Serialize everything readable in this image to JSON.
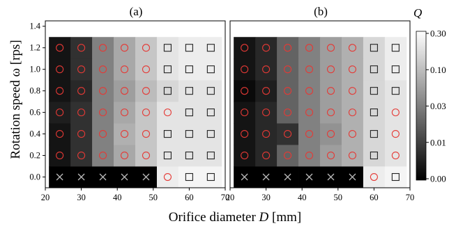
{
  "chart_data": [
    {
      "type": "heatmap",
      "title": "(a)",
      "x": [
        24,
        30,
        36,
        42,
        48,
        54,
        60,
        66
      ],
      "y": [
        0.0,
        0.2,
        0.4,
        0.6,
        0.8,
        1.0,
        1.2
      ],
      "xlim": [
        20,
        70
      ],
      "ylim": [
        -0.1,
        1.45
      ],
      "xticks": [
        "20",
        "30",
        "40",
        "50",
        "60",
        "70"
      ],
      "yticks": [
        "0.0",
        "0.2",
        "0.4",
        "0.6",
        "0.8",
        "1.0",
        "1.2",
        "1.4"
      ],
      "values": [
        [
          0.0,
          0.0,
          0.0,
          0.0,
          0.0,
          0.25,
          0.3,
          0.3
        ],
        [
          0.002,
          0.005,
          0.02,
          0.05,
          0.1,
          0.2,
          0.2,
          0.2
        ],
        [
          0.002,
          0.005,
          0.02,
          0.06,
          0.1,
          0.2,
          0.2,
          0.2
        ],
        [
          0.003,
          0.005,
          0.02,
          0.05,
          0.1,
          0.2,
          0.2,
          0.2
        ],
        [
          0.002,
          0.004,
          0.02,
          0.04,
          0.08,
          0.15,
          0.2,
          0.2
        ],
        [
          0.002,
          0.005,
          0.02,
          0.05,
          0.1,
          0.2,
          0.25,
          0.25
        ],
        [
          0.002,
          0.005,
          0.02,
          0.05,
          0.1,
          0.2,
          0.25,
          0.25
        ]
      ],
      "markers": [
        [
          "x",
          "x",
          "x",
          "x",
          "x",
          "o",
          "s",
          "s"
        ],
        [
          "o",
          "o",
          "o",
          "o",
          "o",
          "s",
          "s",
          "s"
        ],
        [
          "o",
          "o",
          "o",
          "o",
          "o",
          "s",
          "s",
          "s"
        ],
        [
          "o",
          "o",
          "o",
          "o",
          "o",
          "o",
          "s",
          "s"
        ],
        [
          "o",
          "o",
          "o",
          "o",
          "o",
          "s",
          "s",
          "s"
        ],
        [
          "o",
          "o",
          "o",
          "o",
          "o",
          "s",
          "s",
          "s"
        ],
        [
          "o",
          "o",
          "o",
          "o",
          "o",
          "s",
          "s",
          "s"
        ]
      ],
      "ylabel": "Rotation speed ω [rps]"
    },
    {
      "type": "heatmap",
      "title": "(b)",
      "x": [
        24,
        30,
        36,
        42,
        48,
        54,
        60,
        66
      ],
      "y": [
        0.0,
        0.2,
        0.4,
        0.6,
        0.8,
        1.0,
        1.2
      ],
      "xlim": [
        20,
        70
      ],
      "ylim": [
        -0.1,
        1.45
      ],
      "xticks": [
        "20",
        "30",
        "40",
        "50",
        "60",
        "70"
      ],
      "yticks": [
        "0.0",
        "0.2",
        "0.4",
        "0.6",
        "0.8",
        "1.0",
        "1.2",
        "1.4"
      ],
      "values": [
        [
          0.0,
          0.0,
          0.0,
          0.0,
          0.0,
          0.0,
          0.25,
          0.3
        ],
        [
          0.002,
          0.004,
          0.01,
          0.02,
          0.04,
          0.06,
          0.15,
          0.2
        ],
        [
          0.002,
          0.004,
          0.005,
          0.02,
          0.03,
          0.06,
          0.15,
          0.2
        ],
        [
          0.002,
          0.004,
          0.01,
          0.02,
          0.04,
          0.06,
          0.15,
          0.2
        ],
        [
          0.001,
          0.003,
          0.01,
          0.02,
          0.04,
          0.06,
          0.15,
          0.2
        ],
        [
          0.002,
          0.004,
          0.01,
          0.02,
          0.04,
          0.06,
          0.15,
          0.25
        ],
        [
          0.002,
          0.004,
          0.01,
          0.02,
          0.04,
          0.06,
          0.15,
          0.25
        ]
      ],
      "markers": [
        [
          "x",
          "x",
          "x",
          "x",
          "x",
          "x",
          "o",
          "s"
        ],
        [
          "o",
          "o",
          "o",
          "o",
          "o",
          "o",
          "s",
          "o"
        ],
        [
          "o",
          "o",
          "o",
          "o",
          "o",
          "o",
          "s",
          "o"
        ],
        [
          "o",
          "o",
          "o",
          "o",
          "o",
          "o",
          "s",
          "o"
        ],
        [
          "o",
          "o",
          "o",
          "o",
          "o",
          "o",
          "s",
          "s"
        ],
        [
          "o",
          "o",
          "o",
          "o",
          "o",
          "o",
          "s",
          "s"
        ],
        [
          "o",
          "o",
          "o",
          "o",
          "o",
          "o",
          "s",
          "s"
        ]
      ]
    }
  ],
  "shared": {
    "xlabel_prefix": "Orifice diameter ",
    "xlabel_var": "D",
    "xlabel_suffix": " [mm]"
  },
  "colorbar": {
    "title": "Q",
    "ticks": [
      0.3,
      0.1,
      0.03,
      0.01,
      0.0
    ],
    "tick_labels": [
      "0.30",
      "0.10",
      "0.03",
      "0.01",
      "0.00"
    ],
    "scale": "symlog",
    "colormap": "gray"
  },
  "colors": {
    "circle_marker": "#e53935",
    "square_marker": "#222222",
    "cross_marker": "#bdbdbd"
  }
}
